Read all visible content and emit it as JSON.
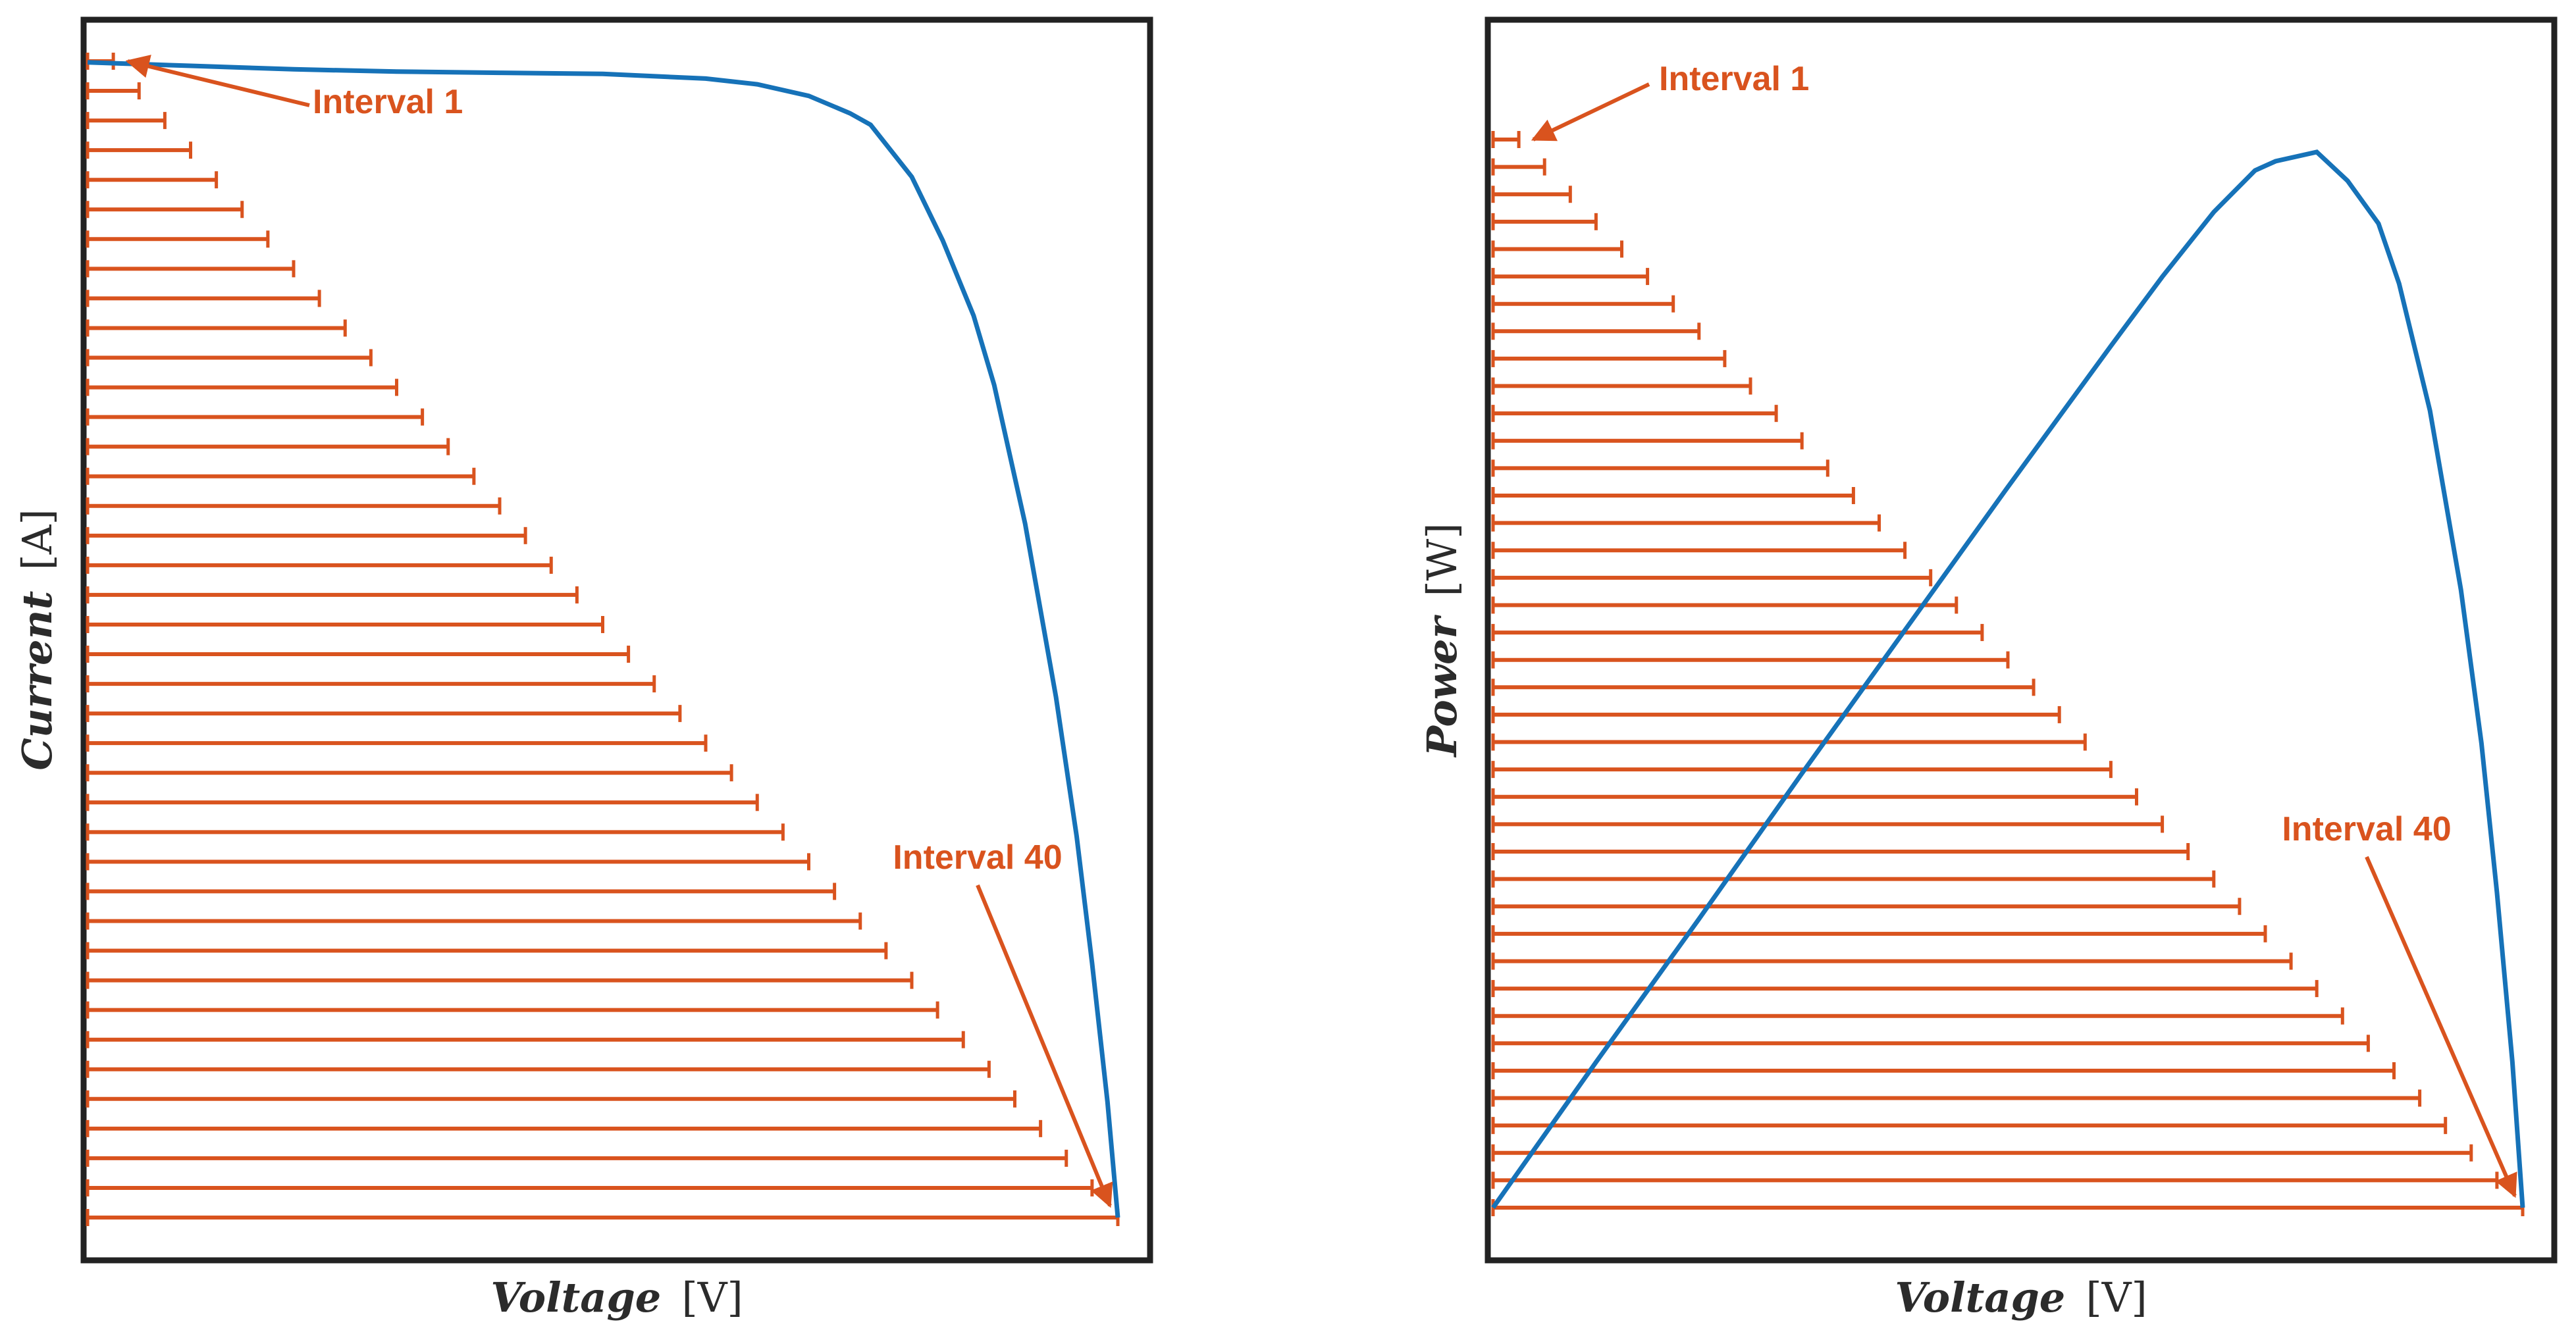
{
  "colors": {
    "curve": "#1672b8",
    "intervals": "#d9531e",
    "frame": "#222222",
    "text": "#2b2b2b"
  },
  "chart_data": [
    {
      "type": "line",
      "title": "",
      "xlabel": {
        "name": "Voltage",
        "unit": "[V]"
      },
      "ylabel": {
        "name": "Current",
        "unit": "[A]"
      },
      "xlim": [
        0,
        1
      ],
      "ylim": [
        0,
        1
      ],
      "grid": false,
      "series": [
        {
          "x": [
            0.0,
            0.1,
            0.2,
            0.3,
            0.4,
            0.5,
            0.6,
            0.65,
            0.7,
            0.74,
            0.76,
            0.8,
            0.83,
            0.86,
            0.88,
            0.91,
            0.94,
            0.96,
            0.975,
            0.99,
            1.0
          ],
          "y": [
            0.999,
            0.996,
            0.993,
            0.991,
            0.99,
            0.989,
            0.985,
            0.98,
            0.97,
            0.955,
            0.945,
            0.9,
            0.845,
            0.78,
            0.72,
            0.6,
            0.45,
            0.33,
            0.22,
            0.1,
            0.0
          ]
        }
      ],
      "intervals": {
        "count": 40,
        "x_start": 0.0,
        "x_end_min": 0.025,
        "x_end_max": 1.0
      },
      "annotations": [
        {
          "text": "Interval 1",
          "interval": 1
        },
        {
          "text": "Interval 40",
          "interval": 40
        }
      ]
    },
    {
      "type": "line",
      "title": "",
      "xlabel": {
        "name": "Voltage",
        "unit": "[V]"
      },
      "ylabel": {
        "name": "Power",
        "unit": "[W]"
      },
      "xlim": [
        0,
        1
      ],
      "ylim": [
        0,
        1
      ],
      "grid": false,
      "series": [
        {
          "x": [
            0.0,
            0.1,
            0.2,
            0.3,
            0.4,
            0.5,
            0.6,
            0.65,
            0.7,
            0.74,
            0.76,
            0.8,
            0.83,
            0.86,
            0.88,
            0.91,
            0.94,
            0.96,
            0.975,
            0.99,
            1.0
          ],
          "y": [
            0.0,
            0.126,
            0.25,
            0.376,
            0.5,
            0.624,
            0.746,
            0.806,
            0.862,
            0.898,
            0.906,
            0.914,
            0.889,
            0.852,
            0.8,
            0.69,
            0.535,
            0.402,
            0.273,
            0.126,
            0.0
          ]
        }
      ],
      "intervals": {
        "count": 40,
        "x_start": 0.0,
        "x_end_min": 0.025,
        "x_end_max": 1.0
      },
      "annotations": [
        {
          "text": "Interval 1",
          "interval": 1
        },
        {
          "text": "Interval 40",
          "interval": 40
        }
      ]
    }
  ]
}
